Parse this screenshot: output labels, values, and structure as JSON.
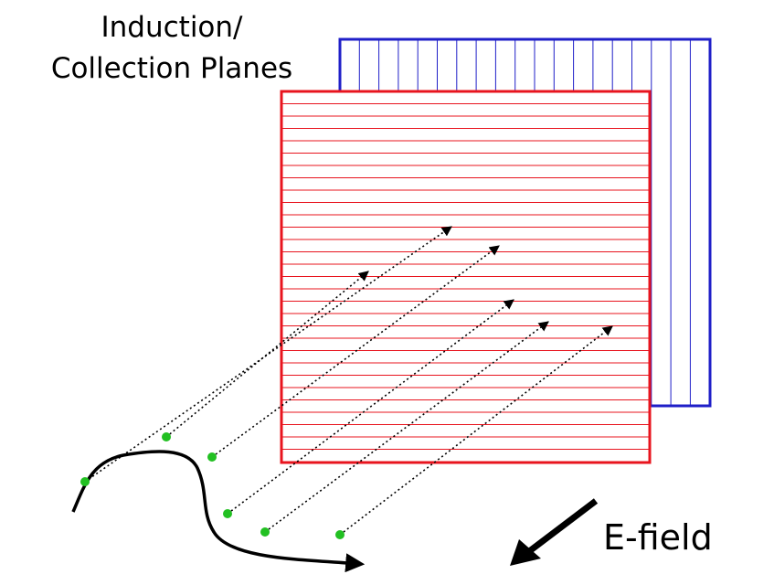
{
  "title_line1": "Induction/",
  "title_line2": "Collection Planes",
  "efield_label": "E-field",
  "colors": {
    "collection_plane": "#1f1fc8",
    "induction_plane": "#e8141e",
    "electron": "#22c022",
    "drift_path": "#000000",
    "track": "#000000",
    "background": "#ffffff"
  }
}
